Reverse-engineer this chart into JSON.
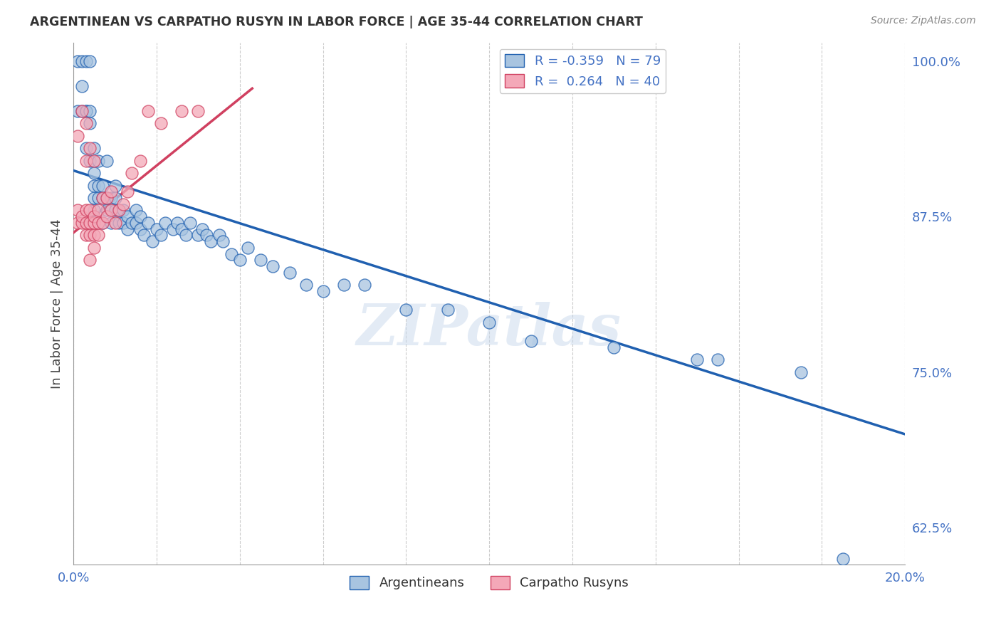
{
  "title": "ARGENTINEAN VS CARPATHO RUSYN IN LABOR FORCE | AGE 35-44 CORRELATION CHART",
  "source": "Source: ZipAtlas.com",
  "ylabel": "In Labor Force | Age 35-44",
  "xlim": [
    0.0,
    0.2
  ],
  "ylim": [
    0.595,
    1.015
  ],
  "yticks_right": [
    0.625,
    0.75,
    0.875,
    1.0
  ],
  "ytick_right_labels": [
    "62.5%",
    "75.0%",
    "87.5%",
    "100.0%"
  ],
  "blue_color": "#a8c4e0",
  "pink_color": "#f4a8b8",
  "blue_line_color": "#2060b0",
  "pink_line_color": "#d04060",
  "watermark": "ZIPatlas",
  "blue_r": -0.359,
  "blue_n": 79,
  "pink_r": 0.264,
  "pink_n": 40,
  "blue_scatter_x": [
    0.001,
    0.001,
    0.002,
    0.002,
    0.002,
    0.003,
    0.003,
    0.003,
    0.003,
    0.004,
    0.004,
    0.004,
    0.004,
    0.005,
    0.005,
    0.005,
    0.005,
    0.005,
    0.006,
    0.006,
    0.006,
    0.007,
    0.007,
    0.007,
    0.008,
    0.008,
    0.008,
    0.009,
    0.009,
    0.01,
    0.01,
    0.01,
    0.011,
    0.011,
    0.012,
    0.012,
    0.013,
    0.013,
    0.014,
    0.015,
    0.015,
    0.016,
    0.016,
    0.017,
    0.018,
    0.019,
    0.02,
    0.021,
    0.022,
    0.024,
    0.025,
    0.026,
    0.027,
    0.028,
    0.03,
    0.031,
    0.032,
    0.033,
    0.035,
    0.036,
    0.038,
    0.04,
    0.042,
    0.045,
    0.048,
    0.052,
    0.056,
    0.06,
    0.065,
    0.07,
    0.08,
    0.09,
    0.1,
    0.11,
    0.13,
    0.15,
    0.155,
    0.175,
    0.185
  ],
  "blue_scatter_y": [
    0.96,
    1.0,
    0.96,
    0.98,
    1.0,
    0.93,
    0.96,
    0.96,
    1.0,
    0.92,
    0.95,
    0.96,
    1.0,
    0.88,
    0.89,
    0.9,
    0.91,
    0.93,
    0.89,
    0.9,
    0.92,
    0.87,
    0.89,
    0.9,
    0.88,
    0.89,
    0.92,
    0.87,
    0.89,
    0.88,
    0.89,
    0.9,
    0.87,
    0.88,
    0.87,
    0.88,
    0.865,
    0.875,
    0.87,
    0.87,
    0.88,
    0.865,
    0.875,
    0.86,
    0.87,
    0.855,
    0.865,
    0.86,
    0.87,
    0.865,
    0.87,
    0.865,
    0.86,
    0.87,
    0.86,
    0.865,
    0.86,
    0.855,
    0.86,
    0.855,
    0.845,
    0.84,
    0.85,
    0.84,
    0.835,
    0.83,
    0.82,
    0.815,
    0.82,
    0.82,
    0.8,
    0.8,
    0.79,
    0.775,
    0.77,
    0.76,
    0.76,
    0.75,
    0.6
  ],
  "pink_scatter_x": [
    0.001,
    0.001,
    0.001,
    0.002,
    0.002,
    0.002,
    0.003,
    0.003,
    0.003,
    0.003,
    0.003,
    0.004,
    0.004,
    0.004,
    0.004,
    0.004,
    0.005,
    0.005,
    0.005,
    0.005,
    0.005,
    0.006,
    0.006,
    0.006,
    0.007,
    0.007,
    0.008,
    0.008,
    0.009,
    0.009,
    0.01,
    0.011,
    0.012,
    0.013,
    0.014,
    0.016,
    0.018,
    0.021,
    0.026,
    0.03
  ],
  "pink_scatter_y": [
    0.87,
    0.88,
    0.94,
    0.87,
    0.875,
    0.96,
    0.86,
    0.87,
    0.88,
    0.92,
    0.95,
    0.84,
    0.86,
    0.87,
    0.88,
    0.93,
    0.85,
    0.86,
    0.87,
    0.875,
    0.92,
    0.86,
    0.87,
    0.88,
    0.87,
    0.89,
    0.875,
    0.89,
    0.88,
    0.895,
    0.87,
    0.88,
    0.885,
    0.895,
    0.91,
    0.92,
    0.96,
    0.95,
    0.96,
    0.96
  ],
  "blue_line_x0": 0.0,
  "blue_line_x1": 0.2,
  "blue_line_y0": 0.912,
  "blue_line_y1": 0.7,
  "pink_line_x0": 0.0,
  "pink_line_x1": 0.043,
  "pink_line_y0": 0.862,
  "pink_line_y1": 0.978
}
